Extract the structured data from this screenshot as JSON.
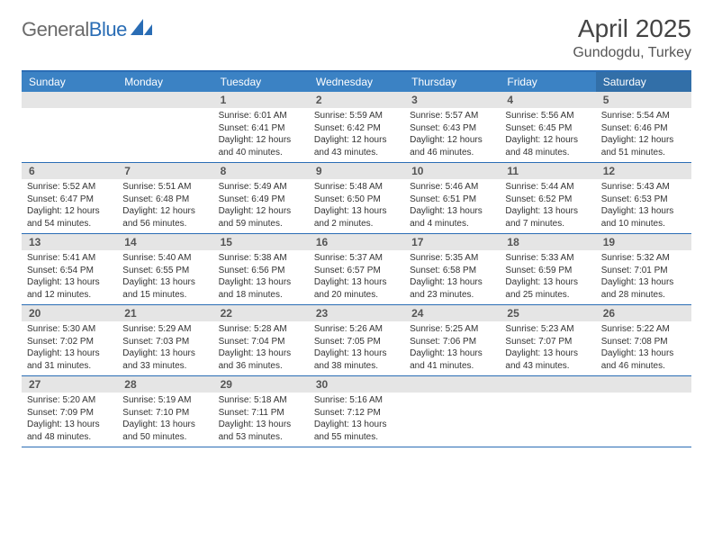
{
  "logo": {
    "gray": "General",
    "blue": "Blue"
  },
  "header": {
    "month_title": "April 2025",
    "location": "Gundogdu, Turkey"
  },
  "weekdays": [
    "Sunday",
    "Monday",
    "Tuesday",
    "Wednesday",
    "Thursday",
    "Friday",
    "Saturday"
  ],
  "colors": {
    "header_bar": "#3b82c4",
    "header_bar_sat": "#326fa8",
    "border_blue": "#2a6db5",
    "daynum_bg": "#e5e5e5"
  },
  "weeks": [
    [
      {
        "empty": true
      },
      {
        "empty": true
      },
      {
        "num": "1",
        "sunrise": "Sunrise: 6:01 AM",
        "sunset": "Sunset: 6:41 PM",
        "day1": "Daylight: 12 hours",
        "day2": "and 40 minutes."
      },
      {
        "num": "2",
        "sunrise": "Sunrise: 5:59 AM",
        "sunset": "Sunset: 6:42 PM",
        "day1": "Daylight: 12 hours",
        "day2": "and 43 minutes."
      },
      {
        "num": "3",
        "sunrise": "Sunrise: 5:57 AM",
        "sunset": "Sunset: 6:43 PM",
        "day1": "Daylight: 12 hours",
        "day2": "and 46 minutes."
      },
      {
        "num": "4",
        "sunrise": "Sunrise: 5:56 AM",
        "sunset": "Sunset: 6:45 PM",
        "day1": "Daylight: 12 hours",
        "day2": "and 48 minutes."
      },
      {
        "num": "5",
        "sunrise": "Sunrise: 5:54 AM",
        "sunset": "Sunset: 6:46 PM",
        "day1": "Daylight: 12 hours",
        "day2": "and 51 minutes."
      }
    ],
    [
      {
        "num": "6",
        "sunrise": "Sunrise: 5:52 AM",
        "sunset": "Sunset: 6:47 PM",
        "day1": "Daylight: 12 hours",
        "day2": "and 54 minutes."
      },
      {
        "num": "7",
        "sunrise": "Sunrise: 5:51 AM",
        "sunset": "Sunset: 6:48 PM",
        "day1": "Daylight: 12 hours",
        "day2": "and 56 minutes."
      },
      {
        "num": "8",
        "sunrise": "Sunrise: 5:49 AM",
        "sunset": "Sunset: 6:49 PM",
        "day1": "Daylight: 12 hours",
        "day2": "and 59 minutes."
      },
      {
        "num": "9",
        "sunrise": "Sunrise: 5:48 AM",
        "sunset": "Sunset: 6:50 PM",
        "day1": "Daylight: 13 hours",
        "day2": "and 2 minutes."
      },
      {
        "num": "10",
        "sunrise": "Sunrise: 5:46 AM",
        "sunset": "Sunset: 6:51 PM",
        "day1": "Daylight: 13 hours",
        "day2": "and 4 minutes."
      },
      {
        "num": "11",
        "sunrise": "Sunrise: 5:44 AM",
        "sunset": "Sunset: 6:52 PM",
        "day1": "Daylight: 13 hours",
        "day2": "and 7 minutes."
      },
      {
        "num": "12",
        "sunrise": "Sunrise: 5:43 AM",
        "sunset": "Sunset: 6:53 PM",
        "day1": "Daylight: 13 hours",
        "day2": "and 10 minutes."
      }
    ],
    [
      {
        "num": "13",
        "sunrise": "Sunrise: 5:41 AM",
        "sunset": "Sunset: 6:54 PM",
        "day1": "Daylight: 13 hours",
        "day2": "and 12 minutes."
      },
      {
        "num": "14",
        "sunrise": "Sunrise: 5:40 AM",
        "sunset": "Sunset: 6:55 PM",
        "day1": "Daylight: 13 hours",
        "day2": "and 15 minutes."
      },
      {
        "num": "15",
        "sunrise": "Sunrise: 5:38 AM",
        "sunset": "Sunset: 6:56 PM",
        "day1": "Daylight: 13 hours",
        "day2": "and 18 minutes."
      },
      {
        "num": "16",
        "sunrise": "Sunrise: 5:37 AM",
        "sunset": "Sunset: 6:57 PM",
        "day1": "Daylight: 13 hours",
        "day2": "and 20 minutes."
      },
      {
        "num": "17",
        "sunrise": "Sunrise: 5:35 AM",
        "sunset": "Sunset: 6:58 PM",
        "day1": "Daylight: 13 hours",
        "day2": "and 23 minutes."
      },
      {
        "num": "18",
        "sunrise": "Sunrise: 5:33 AM",
        "sunset": "Sunset: 6:59 PM",
        "day1": "Daylight: 13 hours",
        "day2": "and 25 minutes."
      },
      {
        "num": "19",
        "sunrise": "Sunrise: 5:32 AM",
        "sunset": "Sunset: 7:01 PM",
        "day1": "Daylight: 13 hours",
        "day2": "and 28 minutes."
      }
    ],
    [
      {
        "num": "20",
        "sunrise": "Sunrise: 5:30 AM",
        "sunset": "Sunset: 7:02 PM",
        "day1": "Daylight: 13 hours",
        "day2": "and 31 minutes."
      },
      {
        "num": "21",
        "sunrise": "Sunrise: 5:29 AM",
        "sunset": "Sunset: 7:03 PM",
        "day1": "Daylight: 13 hours",
        "day2": "and 33 minutes."
      },
      {
        "num": "22",
        "sunrise": "Sunrise: 5:28 AM",
        "sunset": "Sunset: 7:04 PM",
        "day1": "Daylight: 13 hours",
        "day2": "and 36 minutes."
      },
      {
        "num": "23",
        "sunrise": "Sunrise: 5:26 AM",
        "sunset": "Sunset: 7:05 PM",
        "day1": "Daylight: 13 hours",
        "day2": "and 38 minutes."
      },
      {
        "num": "24",
        "sunrise": "Sunrise: 5:25 AM",
        "sunset": "Sunset: 7:06 PM",
        "day1": "Daylight: 13 hours",
        "day2": "and 41 minutes."
      },
      {
        "num": "25",
        "sunrise": "Sunrise: 5:23 AM",
        "sunset": "Sunset: 7:07 PM",
        "day1": "Daylight: 13 hours",
        "day2": "and 43 minutes."
      },
      {
        "num": "26",
        "sunrise": "Sunrise: 5:22 AM",
        "sunset": "Sunset: 7:08 PM",
        "day1": "Daylight: 13 hours",
        "day2": "and 46 minutes."
      }
    ],
    [
      {
        "num": "27",
        "sunrise": "Sunrise: 5:20 AM",
        "sunset": "Sunset: 7:09 PM",
        "day1": "Daylight: 13 hours",
        "day2": "and 48 minutes."
      },
      {
        "num": "28",
        "sunrise": "Sunrise: 5:19 AM",
        "sunset": "Sunset: 7:10 PM",
        "day1": "Daylight: 13 hours",
        "day2": "and 50 minutes."
      },
      {
        "num": "29",
        "sunrise": "Sunrise: 5:18 AM",
        "sunset": "Sunset: 7:11 PM",
        "day1": "Daylight: 13 hours",
        "day2": "and 53 minutes."
      },
      {
        "num": "30",
        "sunrise": "Sunrise: 5:16 AM",
        "sunset": "Sunset: 7:12 PM",
        "day1": "Daylight: 13 hours",
        "day2": "and 55 minutes."
      },
      {
        "empty": true
      },
      {
        "empty": true
      },
      {
        "empty": true
      }
    ]
  ]
}
